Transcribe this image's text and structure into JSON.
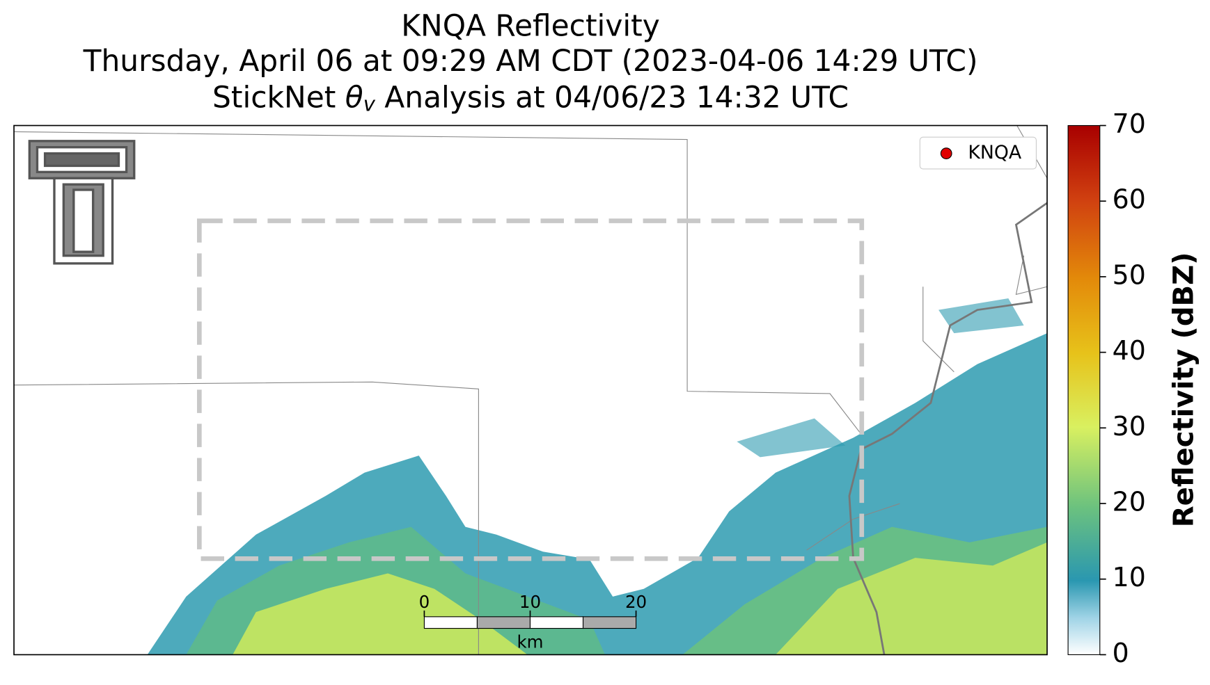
{
  "title": {
    "line1": "KNQA Reflectivity",
    "line2": "Thursday, April 06 at 09:29 AM CDT (2023-04-06 14:29 UTC)",
    "line3": {
      "prefix": "StickNet ",
      "symbol": "θ",
      "subscript": "v",
      "suffix": " Analysis at 04/06/23 14:32 UTC"
    }
  },
  "legend": {
    "label": "KNQA",
    "color": "#e00000"
  },
  "colorbar": {
    "label": "Reflectivity (dBZ)",
    "lim": [
      0,
      70
    ],
    "ticks": [
      0,
      10,
      20,
      30,
      40,
      50,
      60,
      70
    ]
  },
  "scale_bar": {
    "lim": [
      0,
      20
    ],
    "ticks": [
      0,
      10,
      20
    ],
    "unit": "km"
  }
}
